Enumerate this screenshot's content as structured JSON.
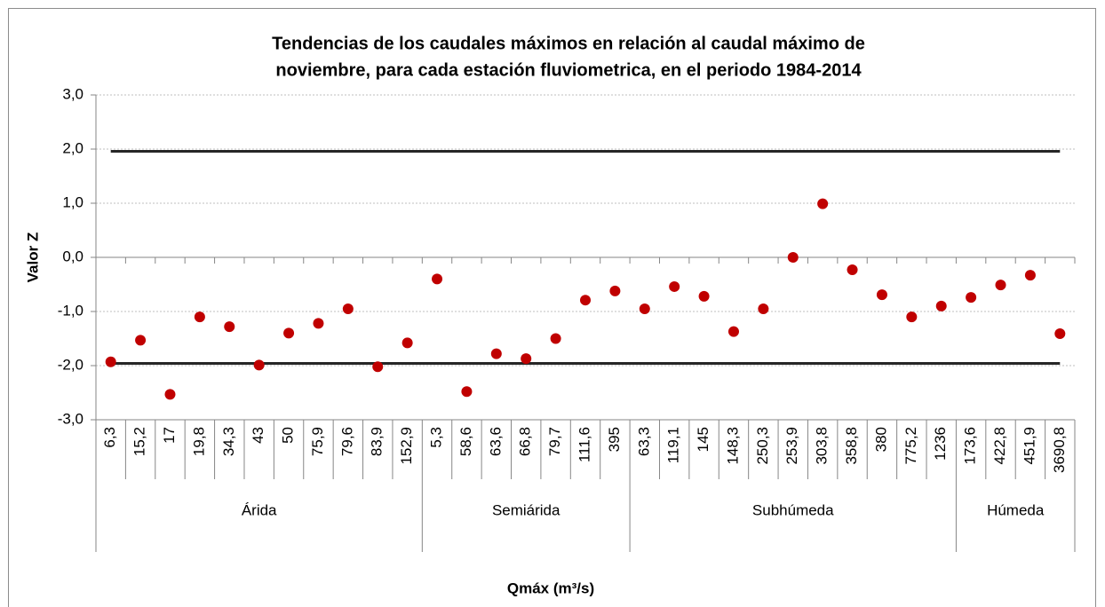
{
  "chart_data": {
    "type": "scatter",
    "title": [
      "Tendencias de los caudales máximos en relación al caudal máximo de",
      "noviembre, para cada estación fluviometrica, en el periodo 1984-2014"
    ],
    "y_label": "Valor Z",
    "x_label": "Qmáx (m³/s)",
    "groups": [
      {
        "name": "Árida",
        "categories": [
          "6,3",
          "15,2",
          "17",
          "19,8",
          "34,3",
          "43",
          "50",
          "75,9",
          "79,6",
          "83,9",
          "152,9"
        ]
      },
      {
        "name": "Semiárida",
        "categories": [
          "5,3",
          "58,6",
          "63,6",
          "66,8",
          "79,7",
          "111,6",
          "395"
        ]
      },
      {
        "name": "Subhúmeda",
        "categories": [
          "63,3",
          "119,1",
          "145",
          "148,3",
          "250,3",
          "253,9",
          "303,8",
          "358,8",
          "380",
          "775,2",
          "1236"
        ]
      },
      {
        "name": "Húmeda",
        "categories": [
          "173,6",
          "422,8",
          "451,9",
          "3690,8"
        ]
      }
    ],
    "values": [
      -1.93,
      -1.53,
      -2.53,
      -1.1,
      -1.28,
      -1.99,
      -1.4,
      -1.22,
      -0.95,
      -2.02,
      -1.58,
      -0.4,
      -2.48,
      -1.78,
      -1.87,
      -1.5,
      -0.79,
      -0.62,
      -0.95,
      -0.54,
      -0.72,
      -1.37,
      -0.95,
      0.0,
      0.99,
      -0.23,
      -0.69,
      -1.1,
      -0.9,
      -0.74,
      -0.51,
      -0.33,
      -1.41
    ],
    "color": "#c00000",
    "reference_lines": {
      "values": [
        1.96,
        -1.96
      ],
      "color": "#262626"
    },
    "ylim": [
      -3,
      3
    ],
    "yticks": [
      {
        "value": 3,
        "label": "3,0"
      },
      {
        "value": 2,
        "label": "2,0"
      },
      {
        "value": 1,
        "label": "1,0"
      },
      {
        "value": 0,
        "label": "0,0"
      },
      {
        "value": -1,
        "label": "-1,0"
      },
      {
        "value": -2,
        "label": "-2,0"
      },
      {
        "value": -3,
        "label": "-3,0"
      }
    ],
    "grid": true
  }
}
